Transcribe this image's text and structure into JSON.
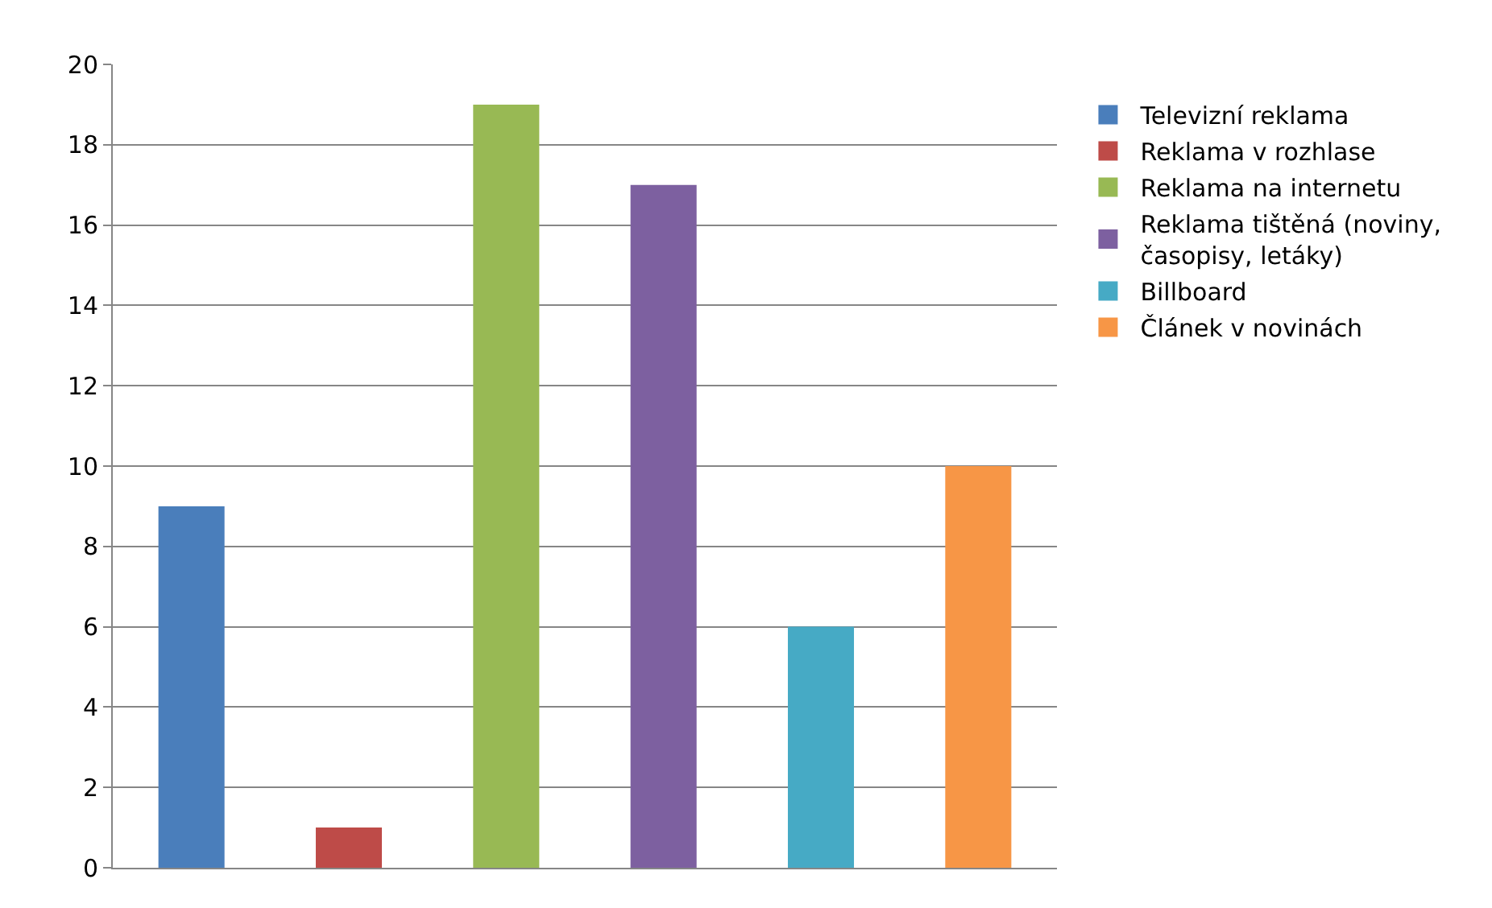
{
  "chart_data": {
    "type": "bar",
    "categories": [
      null,
      null,
      null,
      null,
      null,
      null
    ],
    "series": [
      {
        "name": "Televizní reklama",
        "color": "#4a7ebb",
        "values": [
          9,
          null,
          null,
          null,
          null,
          null
        ]
      },
      {
        "name": "Reklama v rozhlase",
        "color": "#be4b48",
        "values": [
          null,
          1,
          null,
          null,
          null,
          null
        ]
      },
      {
        "name": "Reklama na internetu",
        "color": "#98b954",
        "values": [
          null,
          null,
          19,
          null,
          null,
          null
        ]
      },
      {
        "name": "Reklama tištěná (noviny, časopisy, letáky)",
        "color": "#7d60a0",
        "values": [
          null,
          null,
          null,
          17,
          null,
          null
        ]
      },
      {
        "name": "Billboard",
        "color": "#46aac5",
        "values": [
          null,
          null,
          null,
          null,
          6,
          null
        ]
      },
      {
        "name": "Článek v novinách",
        "color": "#f79646",
        "values": [
          null,
          null,
          null,
          null,
          null,
          10
        ]
      }
    ],
    "ylim": [
      0,
      20
    ],
    "yticks": [
      0,
      2,
      4,
      6,
      8,
      10,
      12,
      14,
      16,
      18,
      20
    ],
    "grid": "y",
    "legend": "right"
  }
}
